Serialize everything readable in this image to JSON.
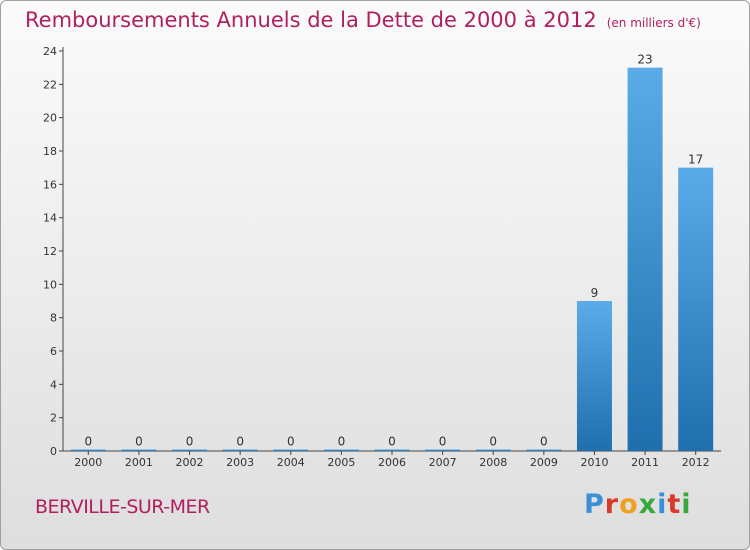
{
  "title": "Remboursements Annuels de la Dette de 2000 à 2012",
  "unit": "(en milliers d'€)",
  "commune": "BERVILLE-SUR-MER",
  "logo": {
    "text": "Proxiti",
    "letters": [
      "P",
      "r",
      "o",
      "x",
      "i",
      "t",
      "i"
    ]
  },
  "colors": {
    "title": "#b02060",
    "bar_top": "#5aabe8",
    "bar_bottom": "#1f6fae",
    "axis": "#444444"
  },
  "chart_data": {
    "type": "bar",
    "categories": [
      "2000",
      "2001",
      "2002",
      "2003",
      "2004",
      "2005",
      "2006",
      "2007",
      "2008",
      "2009",
      "2010",
      "2011",
      "2012"
    ],
    "values": [
      0,
      0,
      0,
      0,
      0,
      0,
      0,
      0,
      0,
      0,
      9,
      23,
      17
    ],
    "data_labels": [
      "0",
      "0",
      "0",
      "0",
      "0",
      "0",
      "0",
      "0",
      "0",
      "0",
      "9",
      "23",
      "17"
    ],
    "yticks": [
      0,
      2,
      4,
      6,
      8,
      10,
      12,
      14,
      16,
      18,
      20,
      22,
      24
    ],
    "ylim": [
      0,
      24
    ],
    "grid": false,
    "legend": "none"
  }
}
